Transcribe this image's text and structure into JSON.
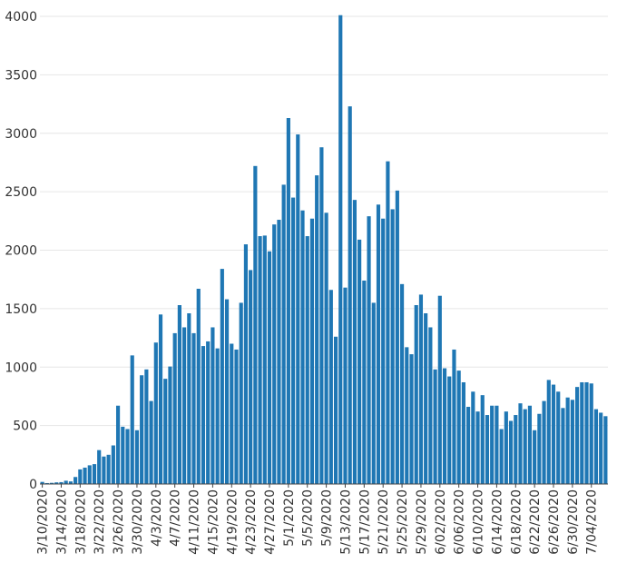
{
  "chart_data": {
    "type": "bar",
    "title": "",
    "xlabel": "",
    "ylabel": "",
    "bar_color": "#1f77b4",
    "grid": true,
    "ylim": [
      0,
      4000
    ],
    "yticks": [
      0,
      500,
      1000,
      1500,
      2000,
      2500,
      3000,
      3500,
      4000
    ],
    "ytick_labels": [
      "0",
      "500",
      "1000",
      "1500",
      "2000",
      "2500",
      "3000",
      "3500",
      "4000"
    ],
    "xtick_labels": [
      "3/10/2020",
      "3/14/2020",
      "3/18/2020",
      "3/22/2020",
      "3/26/2020",
      "3/30/2020",
      "4/3/2020",
      "4/7/2020",
      "4/11/2020",
      "4/15/2020",
      "4/19/2020",
      "4/23/2020",
      "4/27/2020",
      "5/1/2020",
      "5/5/2020",
      "5/9/2020",
      "5/13/2020",
      "5/17/2020",
      "5/21/2020",
      "5/25/2020",
      "5/29/2020",
      "6/02/2020",
      "6/06/2020",
      "6/10/2020",
      "6/14/2020",
      "6/18/2020",
      "6/22/2020",
      "6/26/2020",
      "6/30/2020",
      "7/04/2020"
    ],
    "start_date": "3/10/2020",
    "values": [
      18,
      8,
      10,
      14,
      16,
      28,
      22,
      60,
      125,
      140,
      160,
      170,
      290,
      235,
      250,
      330,
      670,
      490,
      470,
      1100,
      460,
      930,
      980,
      710,
      1210,
      1450,
      900,
      1005,
      1290,
      1530,
      1340,
      1460,
      1290,
      1670,
      1180,
      1220,
      1340,
      1160,
      1840,
      1580,
      1200,
      1150,
      1550,
      2050,
      1830,
      2720,
      2120,
      2125,
      1990,
      2220,
      2260,
      2560,
      3130,
      2450,
      2990,
      2340,
      2120,
      2270,
      2640,
      2880,
      2320,
      1660,
      1260,
      4010,
      1680,
      3230,
      2430,
      2090,
      1740,
      2290,
      1550,
      2390,
      2270,
      2760,
      2350,
      2510,
      1710,
      1170,
      1110,
      1530,
      1620,
      1460,
      1340,
      980,
      1610,
      990,
      920,
      1150,
      970,
      870,
      660,
      790,
      620,
      760,
      590,
      670,
      670,
      470,
      620,
      540,
      590,
      690,
      640,
      670,
      460,
      600,
      710,
      890,
      850,
      790,
      650,
      740,
      720,
      830,
      870,
      870,
      860,
      640,
      610,
      580
    ]
  }
}
